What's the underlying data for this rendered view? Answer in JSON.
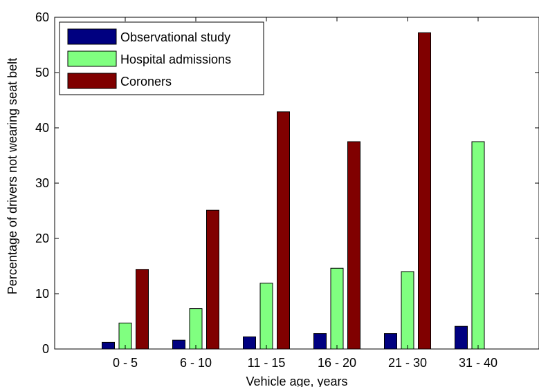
{
  "chart_data": {
    "type": "bar",
    "title": "",
    "xlabel": "Vehicle age, years",
    "ylabel": "Percentage of drivers not wearing seat belt",
    "categories": [
      "0 - 5",
      "6 - 10",
      "11 - 15",
      "16 - 20",
      "21 - 30",
      "31 - 40"
    ],
    "ylim": [
      0,
      60
    ],
    "yticks": [
      0,
      10,
      20,
      30,
      40,
      50,
      60
    ],
    "legend_position": "top-left",
    "grid": false,
    "series": [
      {
        "name": "Observational study",
        "color": "#000080",
        "values": [
          1.2,
          1.6,
          2.2,
          2.8,
          2.8,
          4.1
        ]
      },
      {
        "name": "Hospital admissions",
        "color": "#80ff80",
        "values": [
          4.7,
          7.3,
          11.9,
          14.6,
          14.0,
          37.5
        ]
      },
      {
        "name": "Coroners",
        "color": "#800000",
        "values": [
          14.4,
          25.1,
          42.9,
          37.5,
          57.2,
          0
        ]
      }
    ]
  }
}
